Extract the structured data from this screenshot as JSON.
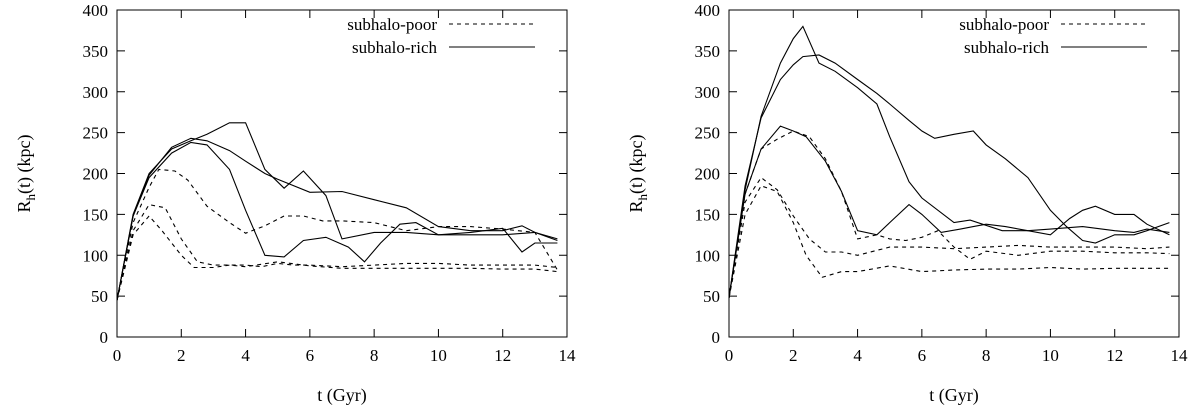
{
  "chart_data": [
    {
      "type": "line",
      "xlabel": "t (Gyr)",
      "ylabel_main": "R",
      "ylabel_sub": "h",
      "ylabel_rest": "(t) (kpc)",
      "xlim": [
        0,
        14
      ],
      "ylim": [
        0,
        400
      ],
      "xticks": [
        0,
        2,
        4,
        6,
        8,
        10,
        12,
        14
      ],
      "yticks": [
        0,
        50,
        100,
        150,
        200,
        250,
        300,
        350,
        400
      ],
      "grid": false,
      "legend_position": "top-right",
      "legend": [
        {
          "label": "subhalo-poor",
          "style": "dashed"
        },
        {
          "label": "subhalo-rich",
          "style": "solid"
        }
      ],
      "series": [
        {
          "style": "dashed",
          "x": [
            0,
            0.5,
            1.0,
            1.3,
            1.8,
            2.2,
            2.8,
            3.5,
            4.0,
            4.6,
            5.2,
            5.8,
            6.4,
            7.0,
            8.0,
            9.0,
            10.0,
            11.0,
            12.0,
            13.0,
            13.7
          ],
          "y": [
            45,
            140,
            183,
            205,
            203,
            192,
            160,
            140,
            127,
            136,
            148,
            148,
            142,
            142,
            140,
            130,
            135,
            135,
            132,
            128,
            82
          ]
        },
        {
          "style": "dashed",
          "x": [
            0,
            0.5,
            1.0,
            1.5,
            2.0,
            2.5,
            3.0,
            3.5,
            4.0,
            4.5,
            5.0,
            5.5,
            6.0,
            7.0,
            8.0,
            9.0,
            10.0,
            11.0,
            12.0,
            13.0,
            13.7
          ],
          "y": [
            45,
            130,
            162,
            158,
            120,
            92,
            88,
            88,
            88,
            86,
            90,
            88,
            88,
            86,
            88,
            90,
            90,
            88,
            88,
            88,
            85
          ]
        },
        {
          "style": "dashed",
          "x": [
            0,
            0.5,
            1.0,
            1.4,
            2.0,
            2.4,
            3.0,
            3.5,
            4.0,
            5.0,
            6.0,
            7.0,
            8.0,
            9.0,
            10.0,
            11.0,
            12.0,
            13.0,
            13.7
          ],
          "y": [
            45,
            125,
            148,
            130,
            100,
            85,
            85,
            88,
            86,
            92,
            87,
            84,
            84,
            84,
            84,
            84,
            83,
            83,
            80
          ]
        },
        {
          "style": "solid",
          "x": [
            0,
            0.5,
            1.0,
            1.7,
            2.3,
            2.8,
            3.5,
            4.0,
            4.6,
            5.2,
            5.8,
            6.5,
            7.0,
            8.0,
            9.0,
            10.0,
            11.0,
            12.0,
            13.0,
            13.7
          ],
          "y": [
            45,
            150,
            200,
            230,
            240,
            248,
            262,
            262,
            205,
            182,
            203,
            173,
            120,
            128,
            128,
            125,
            125,
            125,
            128,
            120
          ]
        },
        {
          "style": "solid",
          "x": [
            0,
            0.5,
            1.0,
            1.7,
            2.3,
            2.8,
            3.5,
            4.0,
            4.6,
            5.0,
            6.0,
            7.0,
            8.0,
            9.0,
            10.0,
            11.0,
            12.0,
            12.6,
            13.0,
            13.7
          ],
          "y": [
            45,
            148,
            198,
            232,
            243,
            240,
            228,
            215,
            200,
            193,
            177,
            178,
            168,
            158,
            135,
            130,
            130,
            136,
            128,
            118
          ]
        },
        {
          "style": "solid",
          "x": [
            0,
            0.5,
            1.0,
            1.7,
            2.3,
            2.8,
            3.5,
            4.0,
            4.6,
            5.2,
            5.8,
            6.5,
            7.2,
            7.7,
            8.2,
            8.8,
            9.3,
            10.0,
            11.0,
            12.0,
            12.6,
            13.0,
            13.7
          ],
          "y": [
            45,
            148,
            195,
            225,
            238,
            235,
            205,
            155,
            100,
            98,
            118,
            122,
            110,
            92,
            115,
            138,
            140,
            125,
            128,
            133,
            104,
            115,
            115
          ]
        }
      ]
    },
    {
      "type": "line",
      "xlabel": "t (Gyr)",
      "ylabel_main": "R",
      "ylabel_sub": "h",
      "ylabel_rest": "(t) (kpc)",
      "xlim": [
        0,
        14
      ],
      "ylim": [
        0,
        400
      ],
      "xticks": [
        0,
        2,
        4,
        6,
        8,
        10,
        12,
        14
      ],
      "yticks": [
        0,
        50,
        100,
        150,
        200,
        250,
        300,
        350,
        400
      ],
      "grid": false,
      "legend_position": "top-right",
      "legend": [
        {
          "label": "subhalo-poor",
          "style": "dashed"
        },
        {
          "label": "subhalo-rich",
          "style": "solid"
        }
      ],
      "series": [
        {
          "style": "dashed",
          "x": [
            0,
            0.5,
            1.0,
            1.5,
            2.0,
            2.5,
            3.0,
            3.5,
            4.0,
            4.6,
            5.0,
            5.5,
            6.0,
            6.5,
            7.0,
            7.5,
            8.0,
            9.0,
            10.0,
            11.0,
            12.0,
            13.0,
            13.7
          ],
          "y": [
            48,
            175,
            230,
            242,
            252,
            245,
            218,
            178,
            120,
            125,
            120,
            118,
            122,
            130,
            110,
            95,
            105,
            100,
            105,
            105,
            103,
            103,
            102
          ]
        },
        {
          "style": "dashed",
          "x": [
            0,
            0.5,
            1.0,
            1.5,
            2.0,
            2.5,
            3.0,
            3.5,
            4.0,
            5.0,
            6.0,
            7.0,
            8.0,
            9.0,
            10.0,
            11.0,
            12.0,
            13.0,
            13.7
          ],
          "y": [
            48,
            165,
            195,
            180,
            148,
            120,
            104,
            104,
            100,
            110,
            110,
            108,
            110,
            112,
            110,
            110,
            110,
            108,
            110
          ]
        },
        {
          "style": "dashed",
          "x": [
            0,
            0.5,
            1.0,
            1.5,
            2.0,
            2.4,
            2.9,
            3.5,
            4.0,
            5.0,
            6.0,
            7.0,
            8.0,
            9.0,
            10.0,
            11.0,
            12.0,
            13.0,
            13.7
          ],
          "y": [
            48,
            150,
            185,
            178,
            140,
            100,
            73,
            80,
            80,
            87,
            80,
            82,
            83,
            83,
            85,
            83,
            84,
            84,
            84
          ]
        },
        {
          "style": "solid",
          "x": [
            0,
            0.5,
            1.0,
            1.6,
            2.0,
            2.3,
            2.8,
            3.3,
            4.0,
            4.6,
            5.0,
            5.6,
            6.0,
            7.0,
            7.5,
            8.5,
            9.3,
            10.0,
            10.6,
            11.0,
            11.4,
            12.0,
            12.6,
            13.0,
            13.7
          ],
          "y": [
            48,
            180,
            270,
            335,
            365,
            380,
            335,
            325,
            305,
            285,
            245,
            190,
            170,
            140,
            143,
            130,
            130,
            125,
            145,
            155,
            160,
            150,
            150,
            138,
            125
          ]
        },
        {
          "style": "solid",
          "x": [
            0,
            0.5,
            1.0,
            1.6,
            2.0,
            2.3,
            2.8,
            3.3,
            4.0,
            4.6,
            5.0,
            5.6,
            6.0,
            6.4,
            7.0,
            7.6,
            8.0,
            8.6,
            9.3,
            10.0,
            10.5,
            11.0,
            11.4,
            12.0,
            12.6,
            13.0,
            13.7
          ],
          "y": [
            48,
            185,
            268,
            315,
            333,
            343,
            345,
            335,
            315,
            298,
            285,
            265,
            252,
            243,
            248,
            252,
            235,
            218,
            195,
            155,
            135,
            118,
            115,
            125,
            125,
            130,
            140
          ]
        },
        {
          "style": "solid",
          "x": [
            0,
            0.5,
            1.0,
            1.6,
            2.0,
            2.4,
            3.0,
            3.5,
            4.0,
            4.6,
            5.0,
            5.6,
            6.0,
            6.6,
            7.2,
            7.6,
            8.0,
            8.6,
            9.3,
            10.0,
            11.0,
            12.0,
            12.6,
            13.0,
            13.7
          ],
          "y": [
            48,
            175,
            230,
            258,
            252,
            245,
            215,
            178,
            130,
            125,
            140,
            162,
            150,
            128,
            132,
            135,
            138,
            135,
            130,
            132,
            135,
            130,
            128,
            132,
            128
          ]
        }
      ]
    }
  ]
}
